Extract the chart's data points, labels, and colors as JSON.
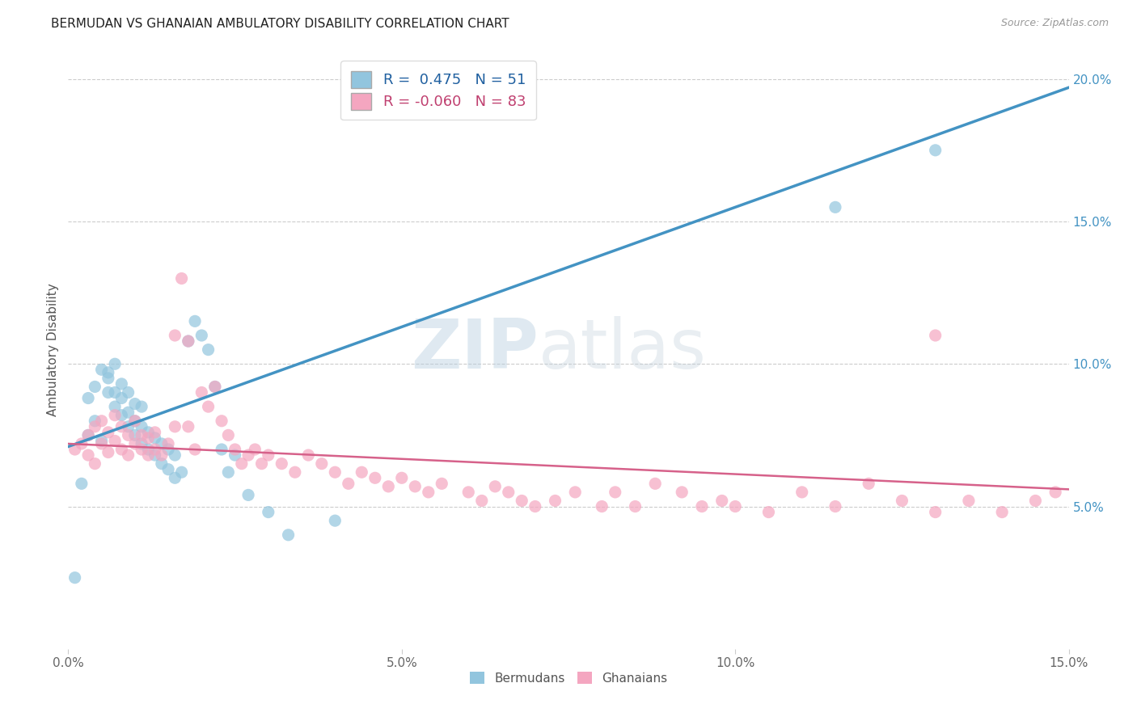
{
  "title": "BERMUDAN VS GHANAIAN AMBULATORY DISABILITY CORRELATION CHART",
  "source": "Source: ZipAtlas.com",
  "ylabel": "Ambulatory Disability",
  "xlim": [
    0.0,
    0.15
  ],
  "ylim": [
    0.0,
    0.21
  ],
  "x_ticks": [
    0.0,
    0.05,
    0.1,
    0.15
  ],
  "x_tick_labels": [
    "0.0%",
    "5.0%",
    "10.0%",
    "15.0%"
  ],
  "y_ticks_right": [
    0.05,
    0.1,
    0.15,
    0.2
  ],
  "y_tick_labels_right": [
    "5.0%",
    "10.0%",
    "15.0%",
    "20.0%"
  ],
  "legend_r_blue": " 0.475",
  "legend_n_blue": "51",
  "legend_r_pink": "-0.060",
  "legend_n_pink": "83",
  "blue_color": "#92c5de",
  "pink_color": "#f4a6c0",
  "blue_line_color": "#4393c3",
  "pink_line_color": "#d6618a",
  "watermark_zip": "ZIP",
  "watermark_atlas": "atlas",
  "bermudans_label": "Bermudans",
  "ghanaians_label": "Ghanaians",
  "blue_line_x0": 0.0,
  "blue_line_y0": 0.071,
  "blue_line_x1": 0.15,
  "blue_line_y1": 0.197,
  "pink_line_x0": 0.0,
  "pink_line_y0": 0.072,
  "pink_line_x1": 0.15,
  "pink_line_y1": 0.056,
  "blue_scatter_x": [
    0.001,
    0.002,
    0.003,
    0.003,
    0.004,
    0.004,
    0.005,
    0.005,
    0.006,
    0.006,
    0.006,
    0.007,
    0.007,
    0.007,
    0.008,
    0.008,
    0.008,
    0.009,
    0.009,
    0.009,
    0.01,
    0.01,
    0.01,
    0.011,
    0.011,
    0.011,
    0.012,
    0.012,
    0.013,
    0.013,
    0.014,
    0.014,
    0.015,
    0.015,
    0.016,
    0.016,
    0.017,
    0.018,
    0.019,
    0.02,
    0.021,
    0.022,
    0.023,
    0.024,
    0.025,
    0.027,
    0.03,
    0.033,
    0.04,
    0.115,
    0.13
  ],
  "blue_scatter_y": [
    0.025,
    0.058,
    0.075,
    0.088,
    0.08,
    0.092,
    0.073,
    0.098,
    0.09,
    0.095,
    0.097,
    0.085,
    0.09,
    0.1,
    0.082,
    0.088,
    0.093,
    0.078,
    0.083,
    0.09,
    0.075,
    0.08,
    0.086,
    0.072,
    0.078,
    0.085,
    0.07,
    0.076,
    0.068,
    0.074,
    0.065,
    0.072,
    0.063,
    0.07,
    0.06,
    0.068,
    0.062,
    0.108,
    0.115,
    0.11,
    0.105,
    0.092,
    0.07,
    0.062,
    0.068,
    0.054,
    0.048,
    0.04,
    0.045,
    0.155,
    0.175
  ],
  "pink_scatter_x": [
    0.001,
    0.002,
    0.003,
    0.003,
    0.004,
    0.004,
    0.005,
    0.005,
    0.006,
    0.006,
    0.007,
    0.007,
    0.008,
    0.008,
    0.009,
    0.009,
    0.01,
    0.01,
    0.011,
    0.011,
    0.012,
    0.012,
    0.013,
    0.013,
    0.014,
    0.015,
    0.016,
    0.016,
    0.017,
    0.018,
    0.019,
    0.02,
    0.021,
    0.022,
    0.023,
    0.024,
    0.025,
    0.026,
    0.027,
    0.028,
    0.029,
    0.03,
    0.032,
    0.034,
    0.036,
    0.038,
    0.04,
    0.042,
    0.044,
    0.046,
    0.048,
    0.05,
    0.052,
    0.054,
    0.056,
    0.06,
    0.062,
    0.064,
    0.066,
    0.068,
    0.07,
    0.073,
    0.076,
    0.08,
    0.082,
    0.085,
    0.088,
    0.092,
    0.095,
    0.098,
    0.1,
    0.105,
    0.11,
    0.115,
    0.12,
    0.125,
    0.13,
    0.135,
    0.14,
    0.145,
    0.148,
    0.018,
    0.13
  ],
  "pink_scatter_y": [
    0.07,
    0.072,
    0.068,
    0.075,
    0.065,
    0.078,
    0.072,
    0.08,
    0.069,
    0.076,
    0.073,
    0.082,
    0.07,
    0.078,
    0.068,
    0.075,
    0.072,
    0.08,
    0.07,
    0.075,
    0.068,
    0.074,
    0.07,
    0.076,
    0.068,
    0.072,
    0.11,
    0.078,
    0.13,
    0.078,
    0.07,
    0.09,
    0.085,
    0.092,
    0.08,
    0.075,
    0.07,
    0.065,
    0.068,
    0.07,
    0.065,
    0.068,
    0.065,
    0.062,
    0.068,
    0.065,
    0.062,
    0.058,
    0.062,
    0.06,
    0.057,
    0.06,
    0.057,
    0.055,
    0.058,
    0.055,
    0.052,
    0.057,
    0.055,
    0.052,
    0.05,
    0.052,
    0.055,
    0.05,
    0.055,
    0.05,
    0.058,
    0.055,
    0.05,
    0.052,
    0.05,
    0.048,
    0.055,
    0.05,
    0.058,
    0.052,
    0.048,
    0.052,
    0.048,
    0.052,
    0.055,
    0.108,
    0.11
  ]
}
